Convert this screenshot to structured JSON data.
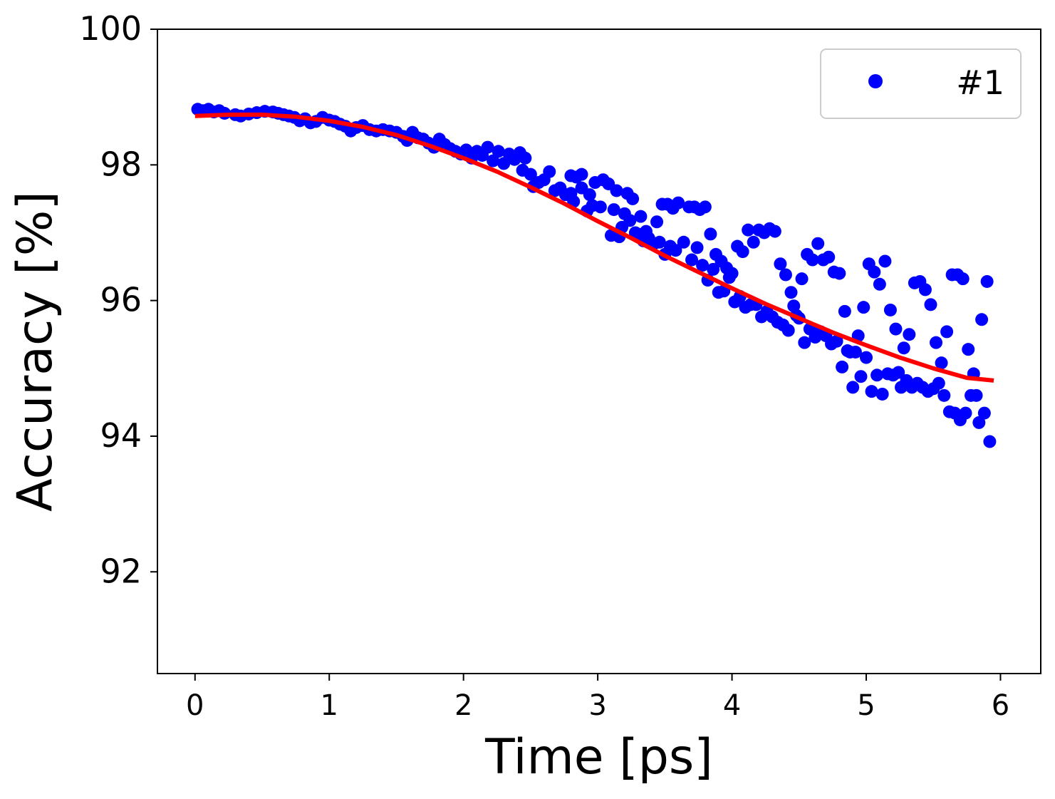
{
  "chart_data": {
    "type": "scatter",
    "xlabel": "Time [ps]",
    "ylabel": "Accuracy [%]",
    "xlim": [
      -0.28,
      6.3
    ],
    "ylim": [
      90.5,
      100
    ],
    "xticks": [
      0,
      1,
      2,
      3,
      4,
      5,
      6
    ],
    "yticks": [
      92,
      94,
      96,
      98,
      100
    ],
    "grid": false,
    "legend_position": "top-right",
    "series": [
      {
        "name": "#1",
        "kind": "scatter",
        "color": "#0000ff",
        "points": [
          [
            0.02,
            98.82
          ],
          [
            0.06,
            98.8
          ],
          [
            0.1,
            98.82
          ],
          [
            0.14,
            98.78
          ],
          [
            0.18,
            98.8
          ],
          [
            0.22,
            98.76
          ],
          [
            0.3,
            98.74
          ],
          [
            0.34,
            98.72
          ],
          [
            0.4,
            98.75
          ],
          [
            0.46,
            98.77
          ],
          [
            0.52,
            98.79
          ],
          [
            0.58,
            98.78
          ],
          [
            0.62,
            98.76
          ],
          [
            0.66,
            98.74
          ],
          [
            0.7,
            98.72
          ],
          [
            0.74,
            98.7
          ],
          [
            0.78,
            98.65
          ],
          [
            0.82,
            98.68
          ],
          [
            0.86,
            98.62
          ],
          [
            0.9,
            98.64
          ],
          [
            0.95,
            98.7
          ],
          [
            1.0,
            98.66
          ],
          [
            1.04,
            98.64
          ],
          [
            1.08,
            98.6
          ],
          [
            1.12,
            98.57
          ],
          [
            1.16,
            98.5
          ],
          [
            1.2,
            98.55
          ],
          [
            1.25,
            98.58
          ],
          [
            1.3,
            98.52
          ],
          [
            1.35,
            98.5
          ],
          [
            1.4,
            98.52
          ],
          [
            1.45,
            98.5
          ],
          [
            1.5,
            98.48
          ],
          [
            1.55,
            98.42
          ],
          [
            1.58,
            98.36
          ],
          [
            1.62,
            98.48
          ],
          [
            1.66,
            98.4
          ],
          [
            1.7,
            98.38
          ],
          [
            1.74,
            98.32
          ],
          [
            1.78,
            98.26
          ],
          [
            1.82,
            98.38
          ],
          [
            1.86,
            98.3
          ],
          [
            1.9,
            98.24
          ],
          [
            1.94,
            98.2
          ],
          [
            1.98,
            98.16
          ],
          [
            2.02,
            98.22
          ],
          [
            2.06,
            98.1
          ],
          [
            2.1,
            98.2
          ],
          [
            2.14,
            98.14
          ],
          [
            2.18,
            98.26
          ],
          [
            2.22,
            98.06
          ],
          [
            2.26,
            98.2
          ],
          [
            2.3,
            98.02
          ],
          [
            2.34,
            98.16
          ],
          [
            2.38,
            98.08
          ],
          [
            2.42,
            98.18
          ],
          [
            2.44,
            97.92
          ],
          [
            2.46,
            98.1
          ],
          [
            2.5,
            97.86
          ],
          [
            2.52,
            97.68
          ],
          [
            2.56,
            97.74
          ],
          [
            2.6,
            97.78
          ],
          [
            2.64,
            97.9
          ],
          [
            2.68,
            97.62
          ],
          [
            2.72,
            97.66
          ],
          [
            2.76,
            97.56
          ],
          [
            2.8,
            97.58
          ],
          [
            2.8,
            97.84
          ],
          [
            2.82,
            97.46
          ],
          [
            2.84,
            97.82
          ],
          [
            2.88,
            97.66
          ],
          [
            2.88,
            97.86
          ],
          [
            2.92,
            97.32
          ],
          [
            2.94,
            97.56
          ],
          [
            2.96,
            97.4
          ],
          [
            2.98,
            97.74
          ],
          [
            3.02,
            97.38
          ],
          [
            3.04,
            97.78
          ],
          [
            3.08,
            97.72
          ],
          [
            3.1,
            96.96
          ],
          [
            3.12,
            97.34
          ],
          [
            3.14,
            97.62
          ],
          [
            3.16,
            96.94
          ],
          [
            3.18,
            97.08
          ],
          [
            3.2,
            97.28
          ],
          [
            3.22,
            97.58
          ],
          [
            3.24,
            97.18
          ],
          [
            3.26,
            97.5
          ],
          [
            3.28,
            97.0
          ],
          [
            3.3,
            96.98
          ],
          [
            3.32,
            97.24
          ],
          [
            3.34,
            96.88
          ],
          [
            3.36,
            97.02
          ],
          [
            3.38,
            96.92
          ],
          [
            3.42,
            96.84
          ],
          [
            3.44,
            97.16
          ],
          [
            3.46,
            96.86
          ],
          [
            3.48,
            97.42
          ],
          [
            3.5,
            96.68
          ],
          [
            3.52,
            97.42
          ],
          [
            3.54,
            96.8
          ],
          [
            3.56,
            97.36
          ],
          [
            3.58,
            96.74
          ],
          [
            3.6,
            97.44
          ],
          [
            3.64,
            96.86
          ],
          [
            3.68,
            97.38
          ],
          [
            3.7,
            96.6
          ],
          [
            3.72,
            97.38
          ],
          [
            3.74,
            96.78
          ],
          [
            3.76,
            97.34
          ],
          [
            3.78,
            96.52
          ],
          [
            3.8,
            97.38
          ],
          [
            3.82,
            96.3
          ],
          [
            3.84,
            96.98
          ],
          [
            3.86,
            96.46
          ],
          [
            3.88,
            96.68
          ],
          [
            3.9,
            96.12
          ],
          [
            3.92,
            96.58
          ],
          [
            3.94,
            96.14
          ],
          [
            3.96,
            96.48
          ],
          [
            3.98,
            96.34
          ],
          [
            4.0,
            96.4
          ],
          [
            4.02,
            95.98
          ],
          [
            4.04,
            96.8
          ],
          [
            4.06,
            96.06
          ],
          [
            4.08,
            96.72
          ],
          [
            4.1,
            95.9
          ],
          [
            4.12,
            97.04
          ],
          [
            4.14,
            95.94
          ],
          [
            4.16,
            96.86
          ],
          [
            4.18,
            95.94
          ],
          [
            4.2,
            97.04
          ],
          [
            4.22,
            95.76
          ],
          [
            4.24,
            97.0
          ],
          [
            4.26,
            95.84
          ],
          [
            4.28,
            97.06
          ],
          [
            4.3,
            95.76
          ],
          [
            4.32,
            97.02
          ],
          [
            4.34,
            95.68
          ],
          [
            4.36,
            96.54
          ],
          [
            4.38,
            95.64
          ],
          [
            4.4,
            96.38
          ],
          [
            4.42,
            95.56
          ],
          [
            4.44,
            96.12
          ],
          [
            4.46,
            95.92
          ],
          [
            4.48,
            95.78
          ],
          [
            4.5,
            95.74
          ],
          [
            4.52,
            96.32
          ],
          [
            4.54,
            95.38
          ],
          [
            4.56,
            96.68
          ],
          [
            4.58,
            95.58
          ],
          [
            4.6,
            96.6
          ],
          [
            4.62,
            95.46
          ],
          [
            4.64,
            96.84
          ],
          [
            4.66,
            95.54
          ],
          [
            4.68,
            96.6
          ],
          [
            4.7,
            95.48
          ],
          [
            4.72,
            96.64
          ],
          [
            4.74,
            95.36
          ],
          [
            4.76,
            96.42
          ],
          [
            4.78,
            95.4
          ],
          [
            4.8,
            96.4
          ],
          [
            4.82,
            95.02
          ],
          [
            4.84,
            95.84
          ],
          [
            4.86,
            95.26
          ],
          [
            4.88,
            95.24
          ],
          [
            4.9,
            94.72
          ],
          [
            4.92,
            95.24
          ],
          [
            4.94,
            95.48
          ],
          [
            4.96,
            94.88
          ],
          [
            4.98,
            95.9
          ],
          [
            5.0,
            95.16
          ],
          [
            5.02,
            96.54
          ],
          [
            5.04,
            94.66
          ],
          [
            5.06,
            96.42
          ],
          [
            5.08,
            94.9
          ],
          [
            5.1,
            96.24
          ],
          [
            5.12,
            94.62
          ],
          [
            5.14,
            96.58
          ],
          [
            5.16,
            94.92
          ],
          [
            5.18,
            95.86
          ],
          [
            5.2,
            94.9
          ],
          [
            5.22,
            95.58
          ],
          [
            5.24,
            94.94
          ],
          [
            5.26,
            94.72
          ],
          [
            5.28,
            95.3
          ],
          [
            5.3,
            94.82
          ],
          [
            5.32,
            95.5
          ],
          [
            5.34,
            94.72
          ],
          [
            5.36,
            96.26
          ],
          [
            5.38,
            94.78
          ],
          [
            5.4,
            96.28
          ],
          [
            5.42,
            94.72
          ],
          [
            5.44,
            96.16
          ],
          [
            5.46,
            94.66
          ],
          [
            5.48,
            95.94
          ],
          [
            5.5,
            94.7
          ],
          [
            5.52,
            95.38
          ],
          [
            5.54,
            94.78
          ],
          [
            5.56,
            95.08
          ],
          [
            5.58,
            94.6
          ],
          [
            5.6,
            95.54
          ],
          [
            5.62,
            94.36
          ],
          [
            5.64,
            96.38
          ],
          [
            5.66,
            94.34
          ],
          [
            5.68,
            96.38
          ],
          [
            5.7,
            94.24
          ],
          [
            5.72,
            96.32
          ],
          [
            5.74,
            94.34
          ],
          [
            5.76,
            95.28
          ],
          [
            5.78,
            94.6
          ],
          [
            5.8,
            94.92
          ],
          [
            5.82,
            94.6
          ],
          [
            5.84,
            94.2
          ],
          [
            5.86,
            95.72
          ],
          [
            5.88,
            94.34
          ],
          [
            5.9,
            96.28
          ],
          [
            5.92,
            93.92
          ]
        ]
      },
      {
        "name": "",
        "kind": "line",
        "color": "#ff0000",
        "points": [
          [
            0.0,
            98.72
          ],
          [
            0.25,
            98.74
          ],
          [
            0.5,
            98.74
          ],
          [
            0.75,
            98.71
          ],
          [
            1.0,
            98.65
          ],
          [
            1.25,
            98.56
          ],
          [
            1.5,
            98.44
          ],
          [
            1.75,
            98.28
          ],
          [
            2.0,
            98.1
          ],
          [
            2.25,
            97.9
          ],
          [
            2.5,
            97.67
          ],
          [
            2.75,
            97.43
          ],
          [
            3.0,
            97.17
          ],
          [
            3.25,
            96.92
          ],
          [
            3.5,
            96.66
          ],
          [
            3.75,
            96.42
          ],
          [
            4.0,
            96.18
          ],
          [
            4.25,
            95.95
          ],
          [
            4.5,
            95.74
          ],
          [
            4.75,
            95.53
          ],
          [
            5.0,
            95.34
          ],
          [
            5.25,
            95.16
          ],
          [
            5.5,
            95.0
          ],
          [
            5.75,
            94.86
          ],
          [
            5.95,
            94.82
          ]
        ]
      }
    ]
  }
}
